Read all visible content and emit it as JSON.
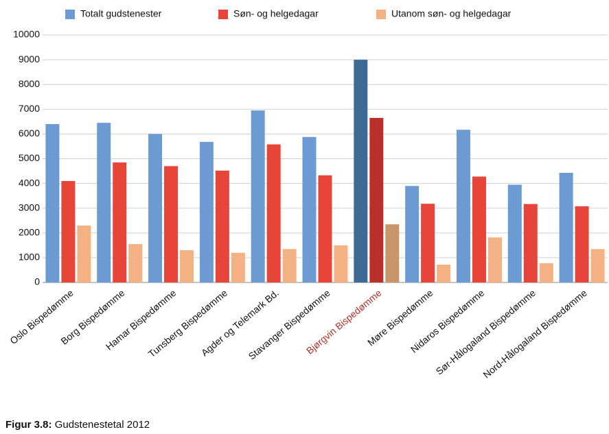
{
  "chart_data": {
    "type": "bar",
    "categories": [
      "Oslo Bispedømme",
      "Borg Bispedømme",
      "Hamar Bispedømme",
      "Tunsberg Bispedømme",
      "Agder og Telemark Bd.",
      "Stavanger Bispedømme",
      "Bjørgvin Bispedømme",
      "Møre Bispedømme",
      "Nidaros Bispedømme",
      "Sør-Hålogaland Bispedømme",
      "Nord-Hålogaland Bispedømme"
    ],
    "series": [
      {
        "name": "Totalt gudstenester",
        "color": "#6b9bd2",
        "values": [
          6400,
          6450,
          6000,
          5680,
          6950,
          5880,
          9000,
          3900,
          6170,
          3950,
          4430
        ]
      },
      {
        "name": "Søn- og helgedagar",
        "color": "#e8453a",
        "values": [
          4100,
          4850,
          4700,
          4520,
          5580,
          4330,
          6650,
          3180,
          4280,
          3170,
          3080
        ]
      },
      {
        "name": "Utanom søn- og helgedagar",
        "color": "#f4b183",
        "values": [
          2300,
          1550,
          1300,
          1200,
          1350,
          1500,
          2350,
          720,
          1820,
          780,
          1350
        ]
      }
    ],
    "highlight": {
      "index": 6,
      "colors": [
        "#3e6b96",
        "#b9302a",
        "#c9956b"
      ],
      "label_color": "#b0302a"
    },
    "ylim": [
      0,
      10000
    ],
    "yticks": [
      0,
      1000,
      2000,
      3000,
      4000,
      5000,
      6000,
      7000,
      8000,
      9000,
      10000
    ],
    "grid": true,
    "legend": "top",
    "caption_label": "Figur 3.8:",
    "caption": "Gudstenestetal 2012"
  }
}
